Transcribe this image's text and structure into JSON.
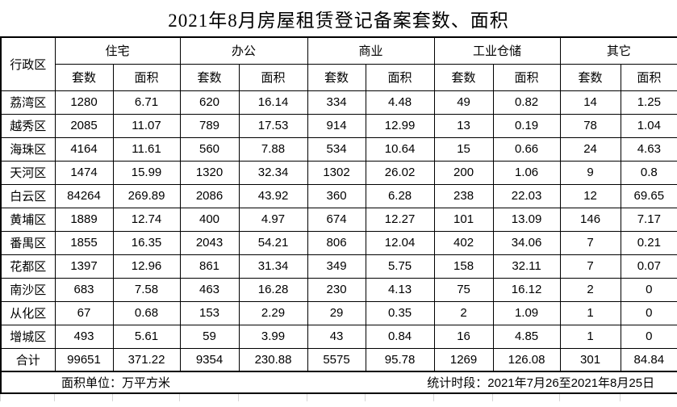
{
  "title": "2021年8月房屋租赁登记备案套数、面积",
  "table": {
    "region_header": "行政区",
    "categories": [
      {
        "label": "住宅"
      },
      {
        "label": "办公"
      },
      {
        "label": "商业"
      },
      {
        "label": "工业仓储"
      },
      {
        "label": "其它"
      }
    ],
    "sub_headers": {
      "count": "套数",
      "area": "面积"
    },
    "rows": [
      {
        "region": "荔湾区",
        "values": [
          "1280",
          "6.71",
          "620",
          "16.14",
          "334",
          "4.48",
          "49",
          "0.82",
          "14",
          "1.25"
        ]
      },
      {
        "region": "越秀区",
        "values": [
          "2085",
          "11.07",
          "789",
          "17.53",
          "914",
          "12.99",
          "13",
          "0.19",
          "78",
          "1.04"
        ]
      },
      {
        "region": "海珠区",
        "values": [
          "4164",
          "11.61",
          "560",
          "7.88",
          "534",
          "10.64",
          "15",
          "0.66",
          "24",
          "4.63"
        ]
      },
      {
        "region": "天河区",
        "values": [
          "1474",
          "15.99",
          "1320",
          "32.34",
          "1302",
          "26.02",
          "200",
          "1.06",
          "9",
          "0.8"
        ]
      },
      {
        "region": "白云区",
        "values": [
          "84264",
          "269.89",
          "2086",
          "43.92",
          "360",
          "6.28",
          "238",
          "22.03",
          "12",
          "69.65"
        ]
      },
      {
        "region": "黄埔区",
        "values": [
          "1889",
          "12.74",
          "400",
          "4.97",
          "674",
          "12.27",
          "101",
          "13.09",
          "146",
          "7.17"
        ]
      },
      {
        "region": "番禺区",
        "values": [
          "1855",
          "16.35",
          "2043",
          "54.21",
          "806",
          "12.04",
          "402",
          "34.06",
          "7",
          "0.21"
        ]
      },
      {
        "region": "花都区",
        "values": [
          "1397",
          "12.96",
          "861",
          "31.34",
          "349",
          "5.75",
          "158",
          "32.11",
          "7",
          "0.07"
        ]
      },
      {
        "region": "南沙区",
        "values": [
          "683",
          "7.58",
          "463",
          "16.28",
          "230",
          "4.13",
          "75",
          "16.12",
          "2",
          "0"
        ]
      },
      {
        "region": "从化区",
        "values": [
          "67",
          "0.68",
          "153",
          "2.29",
          "29",
          "0.35",
          "2",
          "1.09",
          "1",
          "0"
        ]
      },
      {
        "region": "增城区",
        "values": [
          "493",
          "5.61",
          "59",
          "3.99",
          "43",
          "0.84",
          "16",
          "4.85",
          "1",
          "0"
        ]
      },
      {
        "region": "合计",
        "values": [
          "99651",
          "371.22",
          "9354",
          "230.88",
          "5575",
          "95.78",
          "1269",
          "126.08",
          "301",
          "84.84"
        ]
      }
    ],
    "footer": {
      "unit_note": "面积单位：万平方米",
      "period_note": "统计时段：2021年7月26至2021年8月25日"
    }
  }
}
